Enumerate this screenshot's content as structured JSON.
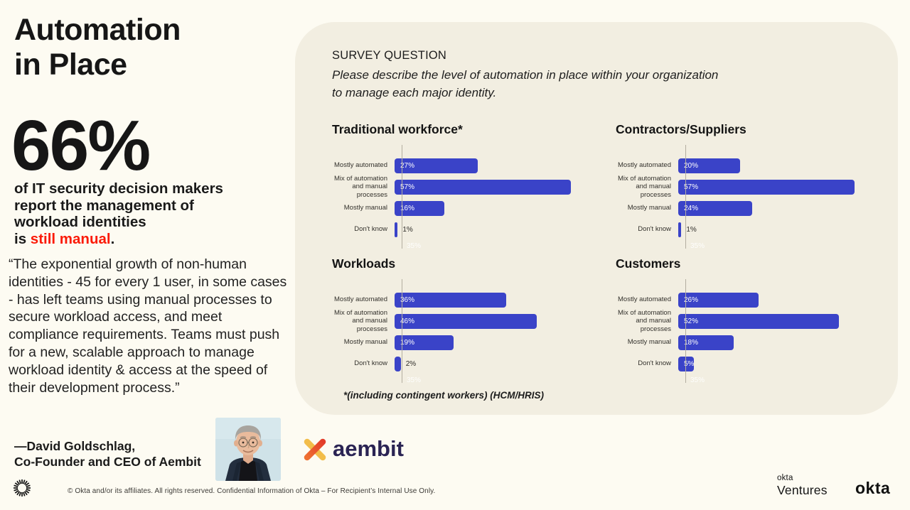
{
  "page": {
    "title_line1": "Automation",
    "title_line2": "in Place",
    "big_stat": "66%",
    "stat_line1": "of IT security decision makers",
    "stat_line2": "report the management of",
    "stat_line3": "workload identities",
    "stat_tail_prefix": "is ",
    "stat_tail_highlight": "still manual",
    "stat_tail_suffix": ".",
    "quote": "“The exponential growth of non-human identities - 45 for every 1 user, in some cases - has left teams using manual processes to secure workload access, and meet compliance requirements. Teams must push for a new, scalable approach to  manage workload identity & access at the speed of their development process.”",
    "attribution_line1": "—David Goldschlag,",
    "attribution_line2": "Co-Founder and CEO of Aembit"
  },
  "panel": {
    "survey_label": "SURVEY QUESTION",
    "survey_question_line1": "Please describe the level of automation in  place within your organization",
    "survey_question_line2": "to manage each major identity.",
    "footnote": "*(including contingent workers) (HCM/HRIS)"
  },
  "chart_data": [
    {
      "type": "bar",
      "orientation": "horizontal",
      "title": "Traditional workforce*",
      "categories": [
        "Mostly automated",
        "Mix of automation and manual processes",
        "Mostly manual",
        "Don't know"
      ],
      "values": [
        27,
        57,
        16,
        1
      ],
      "unit": "%",
      "xlim": [
        0,
        60
      ],
      "ghost_label": "35%",
      "xlabel": "",
      "ylabel": ""
    },
    {
      "type": "bar",
      "orientation": "horizontal",
      "title": "Contractors/Suppliers",
      "categories": [
        "Mostly automated",
        "Mix of automation and manual processes",
        "Mostly manual",
        "Don't know"
      ],
      "values": [
        20,
        57,
        24,
        1
      ],
      "unit": "%",
      "xlim": [
        0,
        60
      ],
      "ghost_label": "35%",
      "xlabel": "",
      "ylabel": ""
    },
    {
      "type": "bar",
      "orientation": "horizontal",
      "title": "Workloads",
      "categories": [
        "Mostly automated",
        "Mix of automation and manual processes",
        "Mostly manual",
        "Don't know"
      ],
      "values": [
        36,
        46,
        19,
        2
      ],
      "unit": "%",
      "xlim": [
        0,
        60
      ],
      "ghost_label": "35%",
      "xlabel": "",
      "ylabel": ""
    },
    {
      "type": "bar",
      "orientation": "horizontal",
      "title": "Customers",
      "categories": [
        "Mostly automated",
        "Mix of automation and manual processes",
        "Mostly manual",
        "Don't know"
      ],
      "values": [
        26,
        52,
        18,
        5
      ],
      "unit": "%",
      "xlim": [
        0,
        60
      ],
      "ghost_label": "35%",
      "xlabel": "",
      "ylabel": ""
    }
  ],
  "logos": {
    "aembit_text": "aembit",
    "okta_ventures_line1": "okta",
    "okta_ventures_line2": "Ventures",
    "okta_wordmark": "okta"
  },
  "footer": {
    "copyright": "© Okta and/or its affiliates. All rights reserved. Confidential Information of Okta – For Recipient’s Internal Use Only."
  },
  "colors": {
    "bar": "#3a43c8",
    "accent_red": "#fb1a07",
    "panel_bg": "#f2eee1",
    "page_bg": "#fdfbf2"
  }
}
